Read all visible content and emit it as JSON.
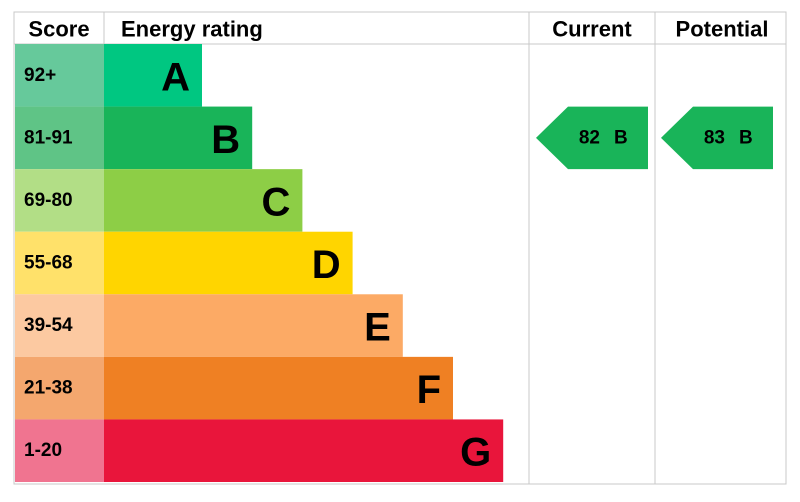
{
  "header": {
    "score": "Score",
    "energy_rating": "Energy rating",
    "current": "Current",
    "potential": "Potential"
  },
  "bands": [
    {
      "score": "92+",
      "letter": "A",
      "color": "#00c781",
      "score_color": "#66c99b"
    },
    {
      "score": "81-91",
      "letter": "B",
      "color": "#19b459",
      "score_color": "#5fc486"
    },
    {
      "score": "69-80",
      "letter": "C",
      "color": "#8dce46",
      "score_color": "#b2de86"
    },
    {
      "score": "55-68",
      "letter": "D",
      "color": "#ffd500",
      "score_color": "#ffe16a"
    },
    {
      "score": "39-54",
      "letter": "E",
      "color": "#fcaa65",
      "score_color": "#fcc9a1"
    },
    {
      "score": "21-38",
      "letter": "F",
      "color": "#ef8023",
      "score_color": "#f4a76e"
    },
    {
      "score": "1-20",
      "letter": "G",
      "color": "#e9153b",
      "score_color": "#f07490"
    }
  ],
  "current": {
    "score": 82,
    "band": "B"
  },
  "potential": {
    "score": 83,
    "band": "B"
  }
}
